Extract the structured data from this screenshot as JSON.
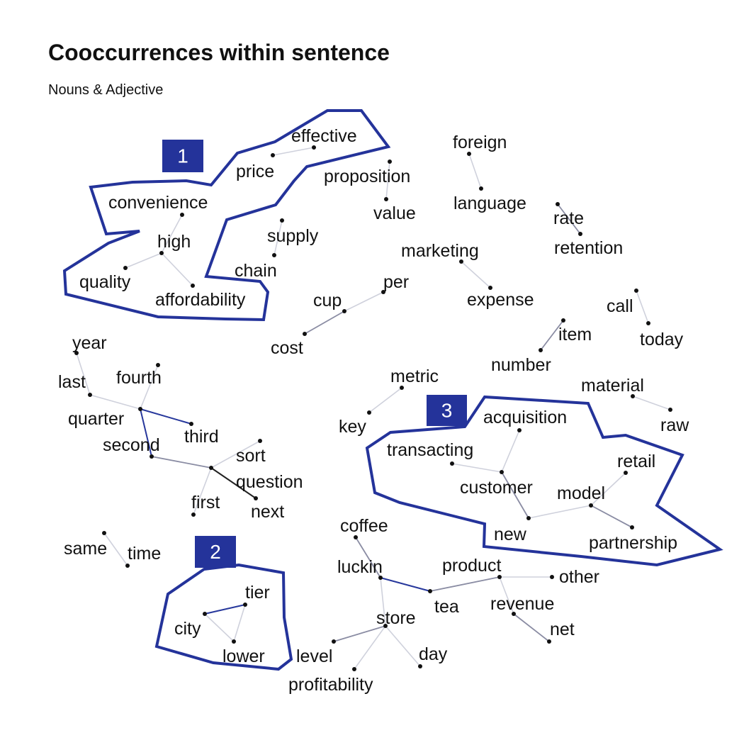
{
  "title": "Cooccurrences within sentence",
  "subtitle": "Nouns & Adjective",
  "nodes": [
    {
      "id": "effective",
      "label": "effective"
    },
    {
      "id": "price",
      "label": "price"
    },
    {
      "id": "proposition",
      "label": "proposition"
    },
    {
      "id": "value",
      "label": "value"
    },
    {
      "id": "convenience",
      "label": "convenience"
    },
    {
      "id": "high",
      "label": "high"
    },
    {
      "id": "quality",
      "label": "quality"
    },
    {
      "id": "affordability",
      "label": "affordability"
    },
    {
      "id": "supply",
      "label": "supply"
    },
    {
      "id": "chain",
      "label": "chain"
    },
    {
      "id": "foreign",
      "label": "foreign"
    },
    {
      "id": "language",
      "label": "language"
    },
    {
      "id": "rate",
      "label": "rate"
    },
    {
      "id": "retention",
      "label": "retention"
    },
    {
      "id": "marketing",
      "label": "marketing"
    },
    {
      "id": "expense",
      "label": "expense"
    },
    {
      "id": "per",
      "label": "per"
    },
    {
      "id": "cup",
      "label": "cup"
    },
    {
      "id": "cost",
      "label": "cost"
    },
    {
      "id": "call",
      "label": "call"
    },
    {
      "id": "today",
      "label": "today"
    },
    {
      "id": "item",
      "label": "item"
    },
    {
      "id": "number",
      "label": "number"
    },
    {
      "id": "year",
      "label": "year"
    },
    {
      "id": "last",
      "label": "last"
    },
    {
      "id": "fourth",
      "label": "fourth"
    },
    {
      "id": "quarter",
      "label": "quarter"
    },
    {
      "id": "third",
      "label": "third"
    },
    {
      "id": "second",
      "label": "second"
    },
    {
      "id": "sort",
      "label": "sort"
    },
    {
      "id": "question",
      "label": "question"
    },
    {
      "id": "first",
      "label": "first"
    },
    {
      "id": "next",
      "label": "next"
    },
    {
      "id": "metric",
      "label": "metric"
    },
    {
      "id": "key",
      "label": "key"
    },
    {
      "id": "material",
      "label": "material"
    },
    {
      "id": "raw",
      "label": "raw"
    },
    {
      "id": "acquisition",
      "label": "acquisition"
    },
    {
      "id": "transacting",
      "label": "transacting"
    },
    {
      "id": "customer",
      "label": "customer"
    },
    {
      "id": "retail",
      "label": "retail"
    },
    {
      "id": "model",
      "label": "model"
    },
    {
      "id": "new",
      "label": "new"
    },
    {
      "id": "partnership",
      "label": "partnership"
    },
    {
      "id": "same",
      "label": "same"
    },
    {
      "id": "time",
      "label": "time"
    },
    {
      "id": "tier",
      "label": "tier"
    },
    {
      "id": "city",
      "label": "city"
    },
    {
      "id": "lower",
      "label": "lower"
    },
    {
      "id": "coffee",
      "label": "coffee"
    },
    {
      "id": "luckin",
      "label": "luckin"
    },
    {
      "id": "product",
      "label": "product"
    },
    {
      "id": "other",
      "label": "other"
    },
    {
      "id": "tea",
      "label": "tea"
    },
    {
      "id": "revenue",
      "label": "revenue"
    },
    {
      "id": "net",
      "label": "net"
    },
    {
      "id": "store",
      "label": "store"
    },
    {
      "id": "level",
      "label": "level"
    },
    {
      "id": "day",
      "label": "day"
    },
    {
      "id": "profitability",
      "label": "profitability"
    }
  ],
  "edges": [
    {
      "source": "effective",
      "target": "price",
      "strength": "weak"
    },
    {
      "source": "proposition",
      "target": "value",
      "strength": "weak"
    },
    {
      "source": "convenience",
      "target": "high",
      "strength": "weak"
    },
    {
      "source": "high",
      "target": "quality",
      "strength": "weak"
    },
    {
      "source": "high",
      "target": "affordability",
      "strength": "weak"
    },
    {
      "source": "supply",
      "target": "chain",
      "strength": "weak"
    },
    {
      "source": "foreign",
      "target": "language",
      "strength": "weak"
    },
    {
      "source": "rate",
      "target": "retention",
      "strength": "medium"
    },
    {
      "source": "marketing",
      "target": "expense",
      "strength": "weak"
    },
    {
      "source": "per",
      "target": "cup",
      "strength": "weak"
    },
    {
      "source": "cup",
      "target": "cost",
      "strength": "medium"
    },
    {
      "source": "call",
      "target": "today",
      "strength": "weak"
    },
    {
      "source": "item",
      "target": "number",
      "strength": "medium"
    },
    {
      "source": "year",
      "target": "last",
      "strength": "weak"
    },
    {
      "source": "last",
      "target": "quarter",
      "strength": "weak"
    },
    {
      "source": "fourth",
      "target": "quarter",
      "strength": "weak"
    },
    {
      "source": "quarter",
      "target": "third",
      "strength": "strong"
    },
    {
      "source": "quarter",
      "target": "second",
      "strength": "strong"
    },
    {
      "source": "second",
      "target": "question",
      "strength": "medium"
    },
    {
      "source": "sort",
      "target": "question",
      "strength": "weak"
    },
    {
      "source": "question",
      "target": "next",
      "strength": "dark"
    },
    {
      "source": "question",
      "target": "first",
      "strength": "weak"
    },
    {
      "source": "metric",
      "target": "key",
      "strength": "weak"
    },
    {
      "source": "material",
      "target": "raw",
      "strength": "weak"
    },
    {
      "source": "acquisition",
      "target": "customer",
      "strength": "weak"
    },
    {
      "source": "transacting",
      "target": "customer",
      "strength": "weak"
    },
    {
      "source": "customer",
      "target": "new",
      "strength": "medium"
    },
    {
      "source": "new",
      "target": "model",
      "strength": "weak"
    },
    {
      "source": "retail",
      "target": "model",
      "strength": "weak"
    },
    {
      "source": "model",
      "target": "partnership",
      "strength": "medium"
    },
    {
      "source": "same",
      "target": "time",
      "strength": "weak"
    },
    {
      "source": "tier",
      "target": "city",
      "strength": "strong"
    },
    {
      "source": "tier",
      "target": "lower",
      "strength": "weak"
    },
    {
      "source": "city",
      "target": "lower",
      "strength": "weak"
    },
    {
      "source": "coffee",
      "target": "luckin",
      "strength": "medium"
    },
    {
      "source": "luckin",
      "target": "tea",
      "strength": "strong"
    },
    {
      "source": "luckin",
      "target": "store",
      "strength": "weak"
    },
    {
      "source": "tea",
      "target": "product",
      "strength": "medium"
    },
    {
      "source": "product",
      "target": "other",
      "strength": "weak"
    },
    {
      "source": "product",
      "target": "revenue",
      "strength": "weak"
    },
    {
      "source": "revenue",
      "target": "net",
      "strength": "medium"
    },
    {
      "source": "store",
      "target": "level",
      "strength": "medium"
    },
    {
      "source": "store",
      "target": "day",
      "strength": "weak"
    },
    {
      "source": "store",
      "target": "profitability",
      "strength": "weak"
    }
  ],
  "clusters": [
    {
      "id": "cluster-1",
      "label": "1"
    },
    {
      "id": "cluster-2",
      "label": "2"
    },
    {
      "id": "cluster-3",
      "label": "3"
    }
  ],
  "colors": {
    "cluster_outline": "#24339a",
    "badge_fill": "#24339a",
    "badge_text": "#ffffff",
    "node_dot": "#111111",
    "edge_weak": "#cfd1dc",
    "edge_medium": "#8a8ca3",
    "edge_strong": "#27389c",
    "edge_dark": "#222222",
    "text": "#111111"
  }
}
